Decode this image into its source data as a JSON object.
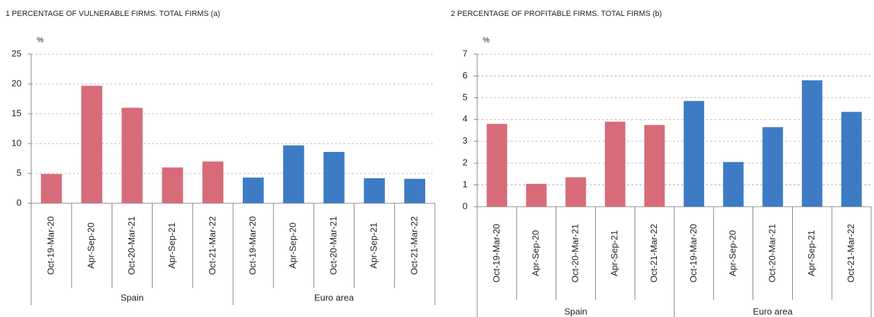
{
  "chart_data": [
    {
      "type": "bar",
      "title": "1  PERCENTAGE OF VULNERABLE FIRMS. TOTAL FIRMS (a)",
      "y_label": "%",
      "groups": [
        {
          "name": "Spain",
          "color": "#d86b7a",
          "categories": [
            "Oct-19-Mar-20",
            "Apr-Sep-20",
            "Oct-20-Mar-21",
            "Apr-Sep-21",
            "Oct-21-Mar-22"
          ],
          "values": [
            4.9,
            19.7,
            16.0,
            6.0,
            7.0
          ]
        },
        {
          "name": "Euro area",
          "color": "#3d7cc4",
          "categories": [
            "Oct-19-Mar-20",
            "Apr-Sep-20",
            "Oct-20-Mar-21",
            "Apr-Sep-21",
            "Oct-21-Mar-22"
          ],
          "values": [
            4.3,
            9.7,
            8.6,
            4.2,
            4.1
          ]
        }
      ],
      "ylim": [
        0,
        25
      ],
      "yticks": [
        0,
        5,
        10,
        15,
        20,
        25
      ],
      "grid": true
    },
    {
      "type": "bar",
      "title": "2  PERCENTAGE OF PROFITABLE FIRMS. TOTAL FIRMS (b)",
      "y_label": "%",
      "groups": [
        {
          "name": "Spain",
          "color": "#d86b7a",
          "categories": [
            "Oct-19-Mar-20",
            "Apr-Sep-20",
            "Oct-20-Mar-21",
            "Apr-Sep-21",
            "Oct-21-Mar-22"
          ],
          "values": [
            3.8,
            1.05,
            1.35,
            3.9,
            3.75
          ]
        },
        {
          "name": "Euro area",
          "color": "#3d7cc4",
          "categories": [
            "Oct-19-Mar-20",
            "Apr-Sep-20",
            "Oct-20-Mar-21",
            "Apr-Sep-21",
            "Oct-21-Mar-22"
          ],
          "values": [
            4.85,
            2.05,
            3.65,
            5.8,
            4.35
          ]
        }
      ],
      "ylim": [
        0,
        7
      ],
      "yticks": [
        0,
        1,
        2,
        3,
        4,
        5,
        6,
        7
      ],
      "grid": true
    }
  ]
}
